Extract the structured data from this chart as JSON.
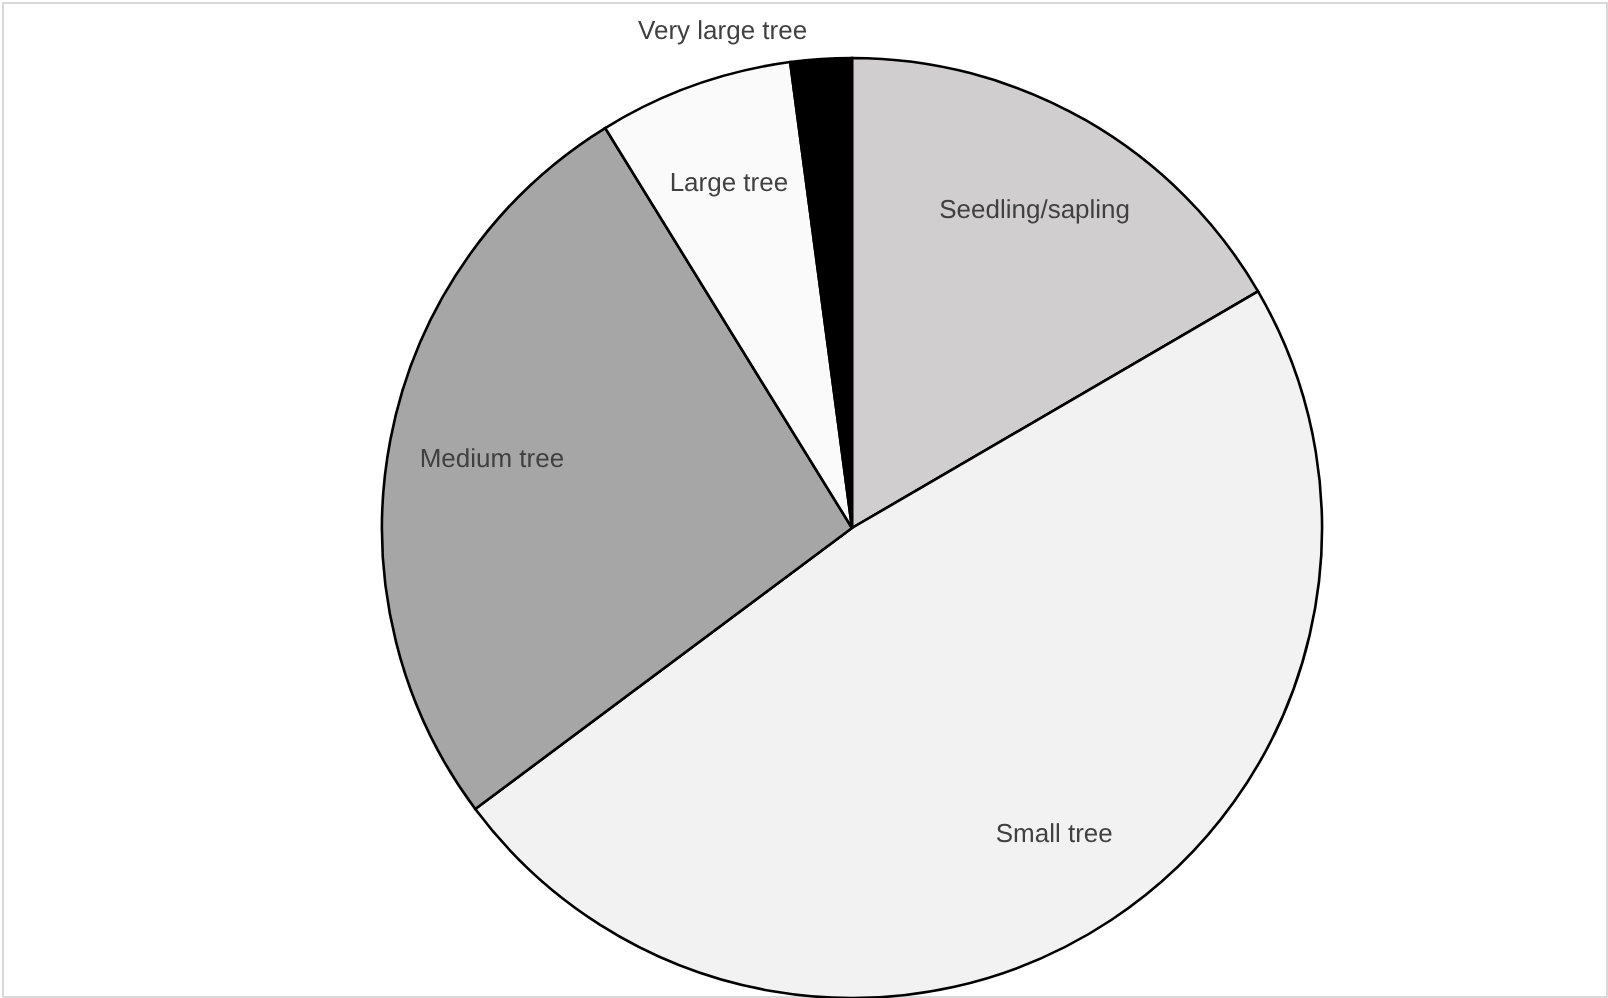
{
  "chart_data": {
    "type": "pie",
    "categories": [
      "Seedling/sapling",
      "Small tree",
      "Medium tree",
      "Large tree",
      "Very large tree"
    ],
    "values": [
      16.6,
      48.2,
      26.4,
      6.7,
      2.1
    ],
    "colors": [
      "#d0cece",
      "#f2f2f2",
      "#a6a6a6",
      "#fafafa",
      "#000000"
    ]
  }
}
